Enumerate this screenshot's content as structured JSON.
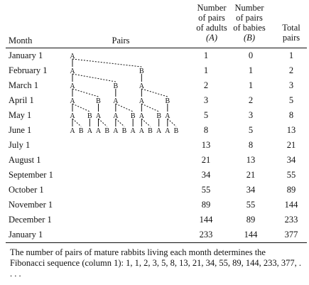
{
  "headers": {
    "month": "Month",
    "pairs": "Pairs",
    "adults": [
      "Number",
      "of pairs",
      "of adults"
    ],
    "adults_symbol": "(A)",
    "babies": [
      "Number",
      "of pairs",
      "of babies"
    ],
    "babies_symbol": "(B)",
    "total": [
      "Total",
      "pairs"
    ]
  },
  "rows": [
    {
      "month": "January 1",
      "adults": "1",
      "babies": "0",
      "total": "1"
    },
    {
      "month": "February 1",
      "adults": "1",
      "babies": "1",
      "total": "2"
    },
    {
      "month": "March 1",
      "adults": "2",
      "babies": "1",
      "total": "3"
    },
    {
      "month": "April 1",
      "adults": "3",
      "babies": "2",
      "total": "5"
    },
    {
      "month": "May 1",
      "adults": "5",
      "babies": "3",
      "total": "8"
    },
    {
      "month": "June 1",
      "adults": "8",
      "babies": "5",
      "total": "13"
    },
    {
      "month": "July 1",
      "adults": "13",
      "babies": "8",
      "total": "21"
    },
    {
      "month": "August 1",
      "adults": "21",
      "babies": "13",
      "total": "34"
    },
    {
      "month": "September 1",
      "adults": "34",
      "babies": "21",
      "total": "55"
    },
    {
      "month": "October 1",
      "adults": "55",
      "babies": "34",
      "total": "89"
    },
    {
      "month": "November 1",
      "adults": "89",
      "babies": "55",
      "total": "144"
    },
    {
      "month": "December 1",
      "adults": "144",
      "babies": "89",
      "total": "233"
    },
    {
      "month": "January 1",
      "adults": "233",
      "babies": "144",
      "total": "377"
    }
  ],
  "tree": {
    "levels": [
      "A",
      "AB",
      "ABA",
      "ABAAB",
      "ABAABABA",
      "ABAABABAABAAB"
    ]
  },
  "caption": "The number of pairs of mature rabbits living each month determines the Fibonacci sequence (column 1): 1, 1, 2, 3, 5, 8, 13, 21, 34, 55, 89, 144, 233, 377, . . . ."
}
